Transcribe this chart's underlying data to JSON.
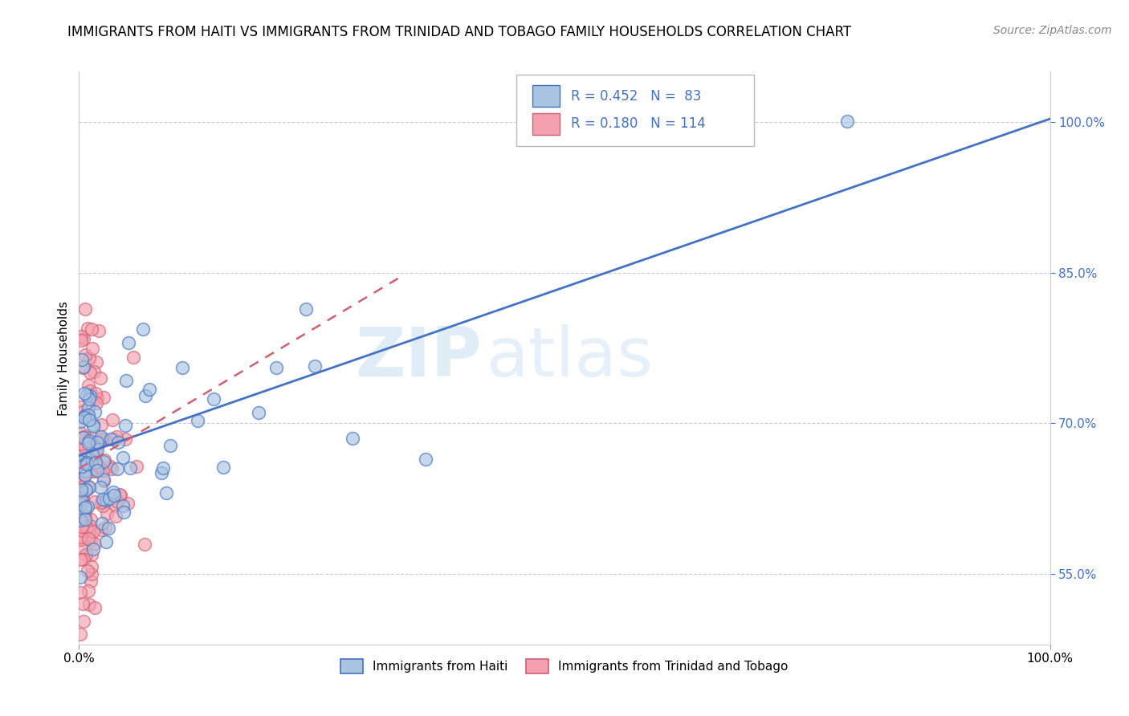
{
  "title": "IMMIGRANTS FROM HAITI VS IMMIGRANTS FROM TRINIDAD AND TOBAGO FAMILY HOUSEHOLDS CORRELATION CHART",
  "source": "Source: ZipAtlas.com",
  "ylabel": "Family Households",
  "xlim": [
    0.0,
    1.0
  ],
  "ylim": [
    0.48,
    1.05
  ],
  "yticks": [
    0.55,
    0.7,
    0.85,
    1.0
  ],
  "ytick_labels": [
    "55.0%",
    "70.0%",
    "85.0%",
    "100.0%"
  ],
  "xtick_labels": [
    "0.0%",
    "100.0%"
  ],
  "xticks": [
    0.0,
    1.0
  ],
  "watermark_zip": "ZIP",
  "watermark_atlas": "atlas",
  "color_haiti": "#a8c4e0",
  "color_haiti_edge": "#4472c4",
  "color_tt": "#f4a0b0",
  "color_tt_edge": "#d06070",
  "color_haiti_line": "#4472c4",
  "color_tt_line": "#d06070",
  "background_color": "#ffffff",
  "haiti_line_x0": 0.0,
  "haiti_line_y0": 0.668,
  "haiti_line_x1": 1.0,
  "haiti_line_y1": 1.003,
  "tt_line_x0": 0.0,
  "tt_line_y0": 0.655,
  "tt_line_x1": 0.33,
  "tt_line_y1": 0.845
}
